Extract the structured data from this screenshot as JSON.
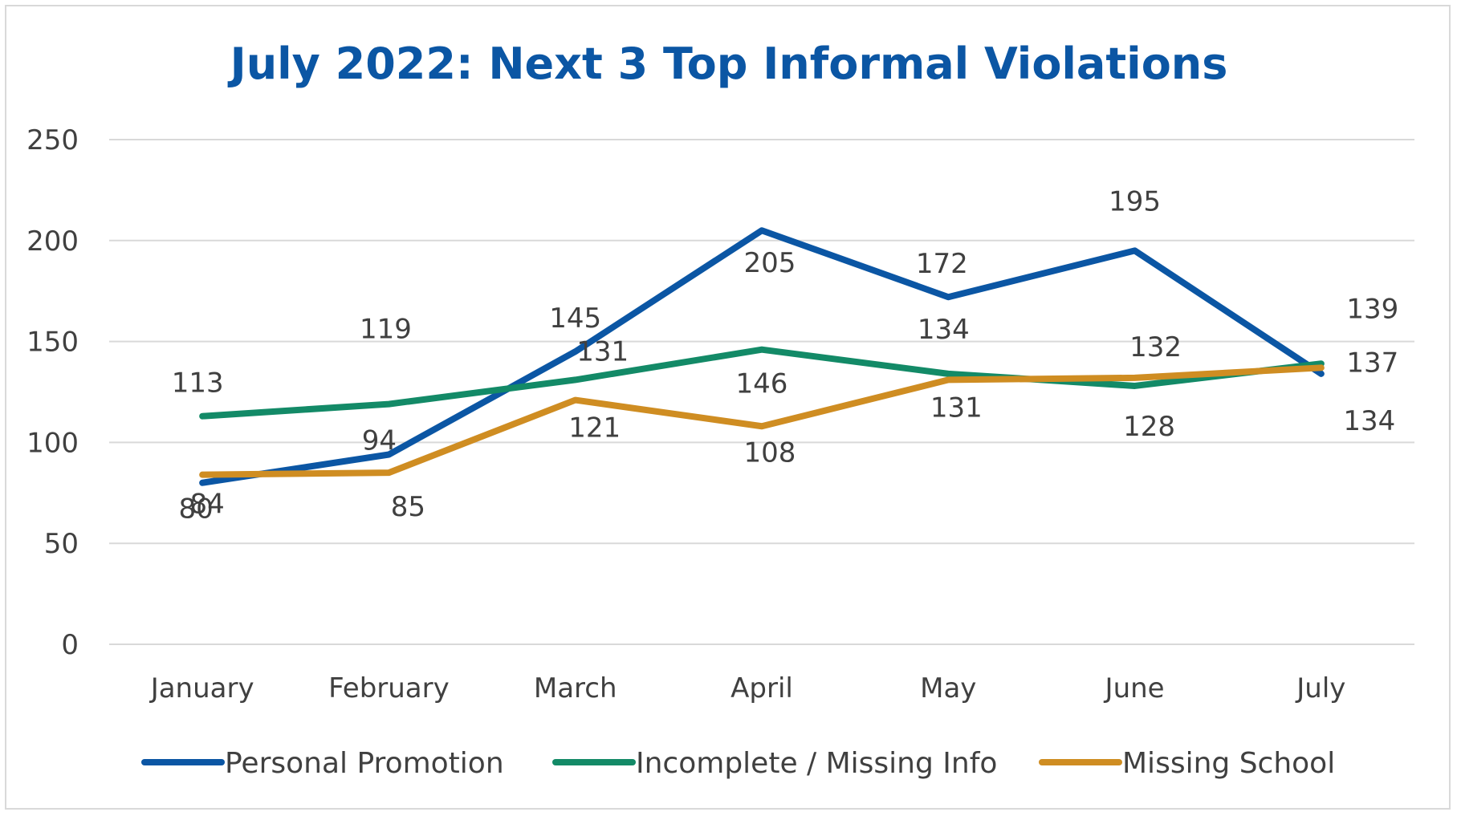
{
  "chart_data": {
    "type": "line",
    "title": "July 2022: Next 3 Top Informal Violations",
    "categories": [
      "January",
      "February",
      "March",
      "April",
      "May",
      "June",
      "July"
    ],
    "y_ticks": [
      "0",
      "50",
      "100",
      "150",
      "200",
      "250"
    ],
    "ylim": [
      0,
      250
    ],
    "grid": true,
    "legend_position": "bottom",
    "series": [
      {
        "name": "Personal Promotion",
        "color": "#0b56a4",
        "values": [
          80,
          94,
          145,
          205,
          172,
          195,
          134
        ]
      },
      {
        "name": "Incomplete / Missing Info",
        "color": "#138a67",
        "values": [
          113,
          119,
          131,
          146,
          134,
          128,
          139
        ]
      },
      {
        "name": "Missing School",
        "color": "#cf8d22",
        "values": [
          84,
          85,
          121,
          108,
          131,
          132,
          137
        ]
      }
    ]
  }
}
